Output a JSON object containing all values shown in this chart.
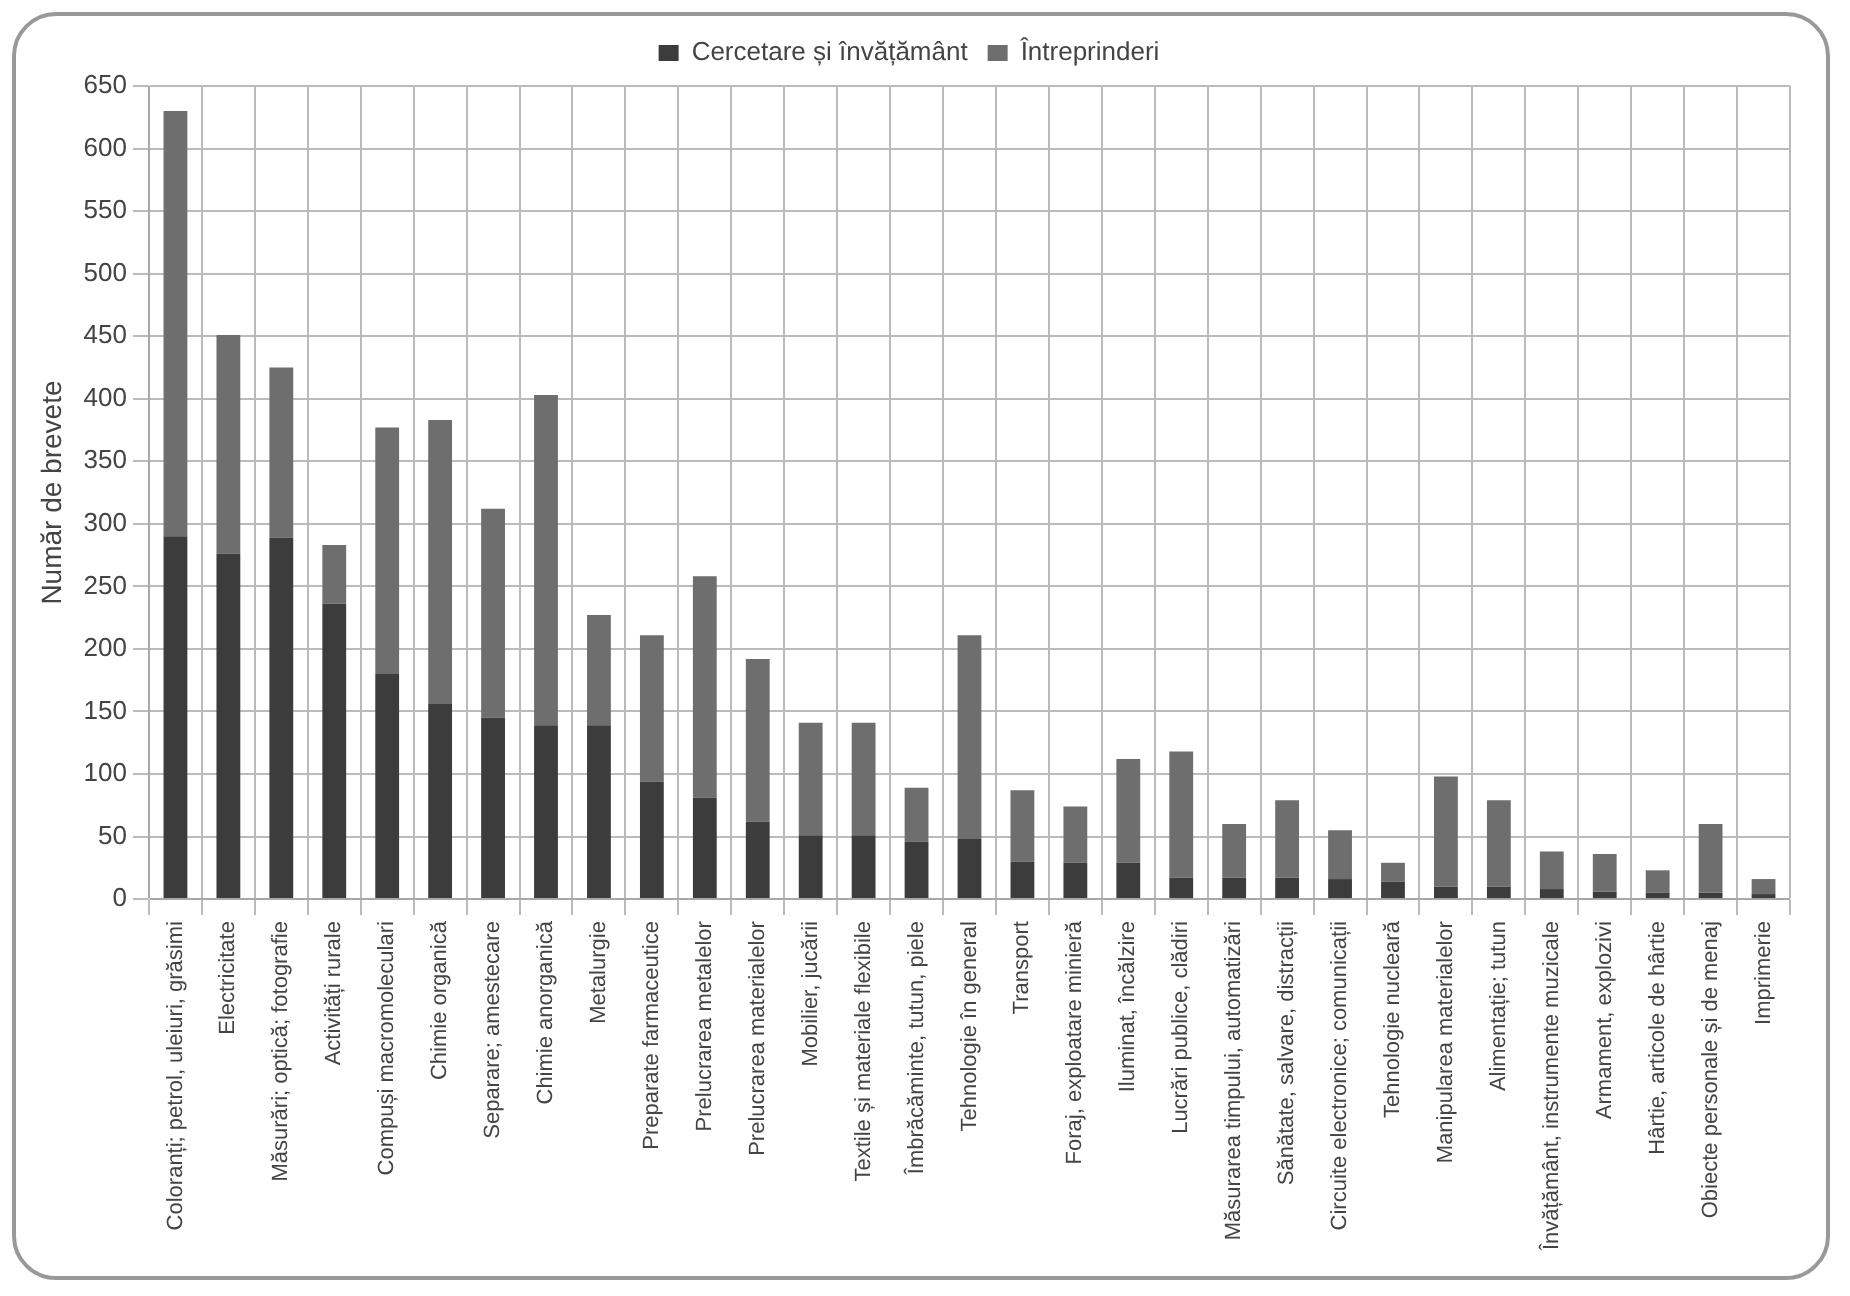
{
  "chart_data": {
    "type": "bar",
    "stacked": true,
    "ylabel": "Număr de brevete",
    "categories": [
      "Coloranți; petrol, uleiuri, grăsimi",
      "Electricitate",
      "Măsurări; optică; fotografie",
      "Activități rurale",
      "Compuși macromoleculari",
      "Chimie organică",
      "Separare; amestecare",
      "Chimie anorganică",
      "Metalurgie",
      "Preparate farmaceutice",
      "Prelucrarea metalelor",
      "Prelucrarea materialelor",
      "Mobilier, jucării",
      "Textile și materiale flexibile",
      "Îmbrăcăminte, tutun, piele",
      "Tehnologie în general",
      "Transport",
      "Foraj, exploatare minieră",
      "Iluminat, încălzire",
      "Lucrări publice, clădiri",
      "Măsurarea timpului, automatizări",
      "Sănătate, salvare, distracții",
      "Circuite electronice; comunicații",
      "Tehnologie nucleară",
      "Manipularea materialelor",
      "Alimentație; tutun",
      "Învățământ, instrumente muzicale",
      "Armament, explozivi",
      "Hârtie, articole de hârtie",
      "Obiecte personale și de menaj",
      "Imprimerie"
    ],
    "series": [
      {
        "name": "Cercetare și învățământ",
        "color": "#3c3c3c",
        "values": [
          290,
          276,
          289,
          236,
          180,
          156,
          145,
          139,
          139,
          94,
          81,
          62,
          51,
          51,
          46,
          48,
          30,
          29,
          29,
          17,
          17,
          17,
          16,
          14,
          10,
          10,
          8,
          6,
          5,
          5,
          4
        ]
      },
      {
        "name": "Întreprinderi",
        "color": "#6e6e6e",
        "values": [
          340,
          175,
          136,
          47,
          197,
          227,
          167,
          264,
          88,
          117,
          177,
          130,
          90,
          90,
          43,
          163,
          57,
          45,
          83,
          101,
          43,
          62,
          39,
          15,
          88,
          69,
          30,
          30,
          18,
          55,
          12
        ]
      }
    ],
    "ylim": [
      0,
      650
    ],
    "yticks": [
      0,
      50,
      100,
      150,
      200,
      250,
      300,
      350,
      400,
      450,
      500,
      550,
      600,
      650
    ],
    "grid": true,
    "legend": "top"
  }
}
